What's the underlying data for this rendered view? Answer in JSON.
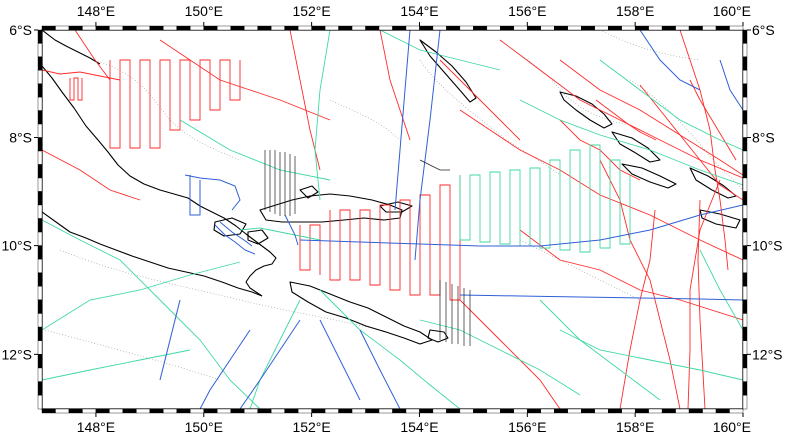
{
  "map": {
    "projection": "mercator",
    "lon_range": [
      147,
      160
    ],
    "lat_range": [
      -13,
      -6
    ],
    "frame_style": "checkered",
    "colors": {
      "red_tracks": "#ff2a2a",
      "green_tracks": "#3fd9a0",
      "blue_tracks": "#2f5fd6",
      "coastline": "#000000",
      "frame_dark": "#000000",
      "frame_light": "#ffffff"
    },
    "top_labels": [
      {
        "lon": 148,
        "text": "148°E"
      },
      {
        "lon": 150,
        "text": "150°E"
      },
      {
        "lon": 152,
        "text": "152°E"
      },
      {
        "lon": 154,
        "text": "154°E"
      },
      {
        "lon": 156,
        "text": "156°E"
      },
      {
        "lon": 158,
        "text": "158°E"
      },
      {
        "lon": 160,
        "text": "160°E"
      }
    ],
    "bottom_labels": [
      {
        "lon": 148,
        "text": "148°E"
      },
      {
        "lon": 150,
        "text": "150°E"
      },
      {
        "lon": 152,
        "text": "152°E"
      },
      {
        "lon": 154,
        "text": "154°E"
      },
      {
        "lon": 156,
        "text": "156°E"
      },
      {
        "lon": 158,
        "text": "158°E"
      },
      {
        "lon": 160,
        "text": "160°E"
      }
    ],
    "left_labels": [
      {
        "lat": -6,
        "text": "6°S"
      },
      {
        "lat": -8,
        "text": "8°S"
      },
      {
        "lat": -10,
        "text": "10°S"
      },
      {
        "lat": -12,
        "text": "12°S"
      }
    ],
    "right_labels": [
      {
        "lat": -6,
        "text": "6°S"
      },
      {
        "lat": -8,
        "text": "8°S"
      },
      {
        "lat": -10,
        "text": "10°S"
      },
      {
        "lat": -12,
        "text": "12°S"
      }
    ]
  }
}
